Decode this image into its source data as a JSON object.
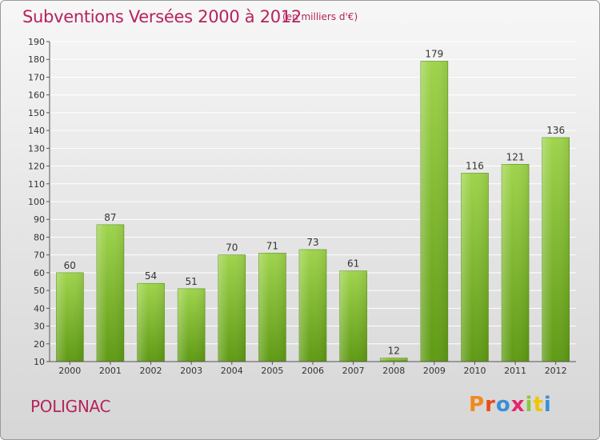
{
  "header": {
    "title": "Subventions Versées 2000 à 2012",
    "subtitle": "(en milliers d'€)"
  },
  "footer": {
    "commune": "POLIGNAC",
    "logo_text": "Proxiti",
    "logo_colors": [
      "#f08a1d",
      "#e84b1a",
      "#3b8fd6",
      "#e3276b",
      "#8cc63f",
      "#f2c500",
      "#3b8fd6"
    ]
  },
  "colors": {
    "title": "#b5235d",
    "bar_top": "#9fd44c",
    "bar_bottom": "#5f9a14",
    "grid": "#ffffff"
  },
  "chart_data": {
    "type": "bar",
    "categories": [
      "2000",
      "2001",
      "2002",
      "2003",
      "2004",
      "2005",
      "2006",
      "2007",
      "2008",
      "2009",
      "2010",
      "2011",
      "2012"
    ],
    "values": [
      60,
      87,
      54,
      51,
      70,
      71,
      73,
      61,
      12,
      179,
      116,
      121,
      136
    ],
    "ylim": [
      10,
      190
    ],
    "yticks": [
      10,
      20,
      30,
      40,
      50,
      60,
      70,
      80,
      90,
      100,
      110,
      120,
      130,
      140,
      150,
      160,
      170,
      180,
      190
    ],
    "grid": true,
    "xlabel": "",
    "ylabel": ""
  }
}
